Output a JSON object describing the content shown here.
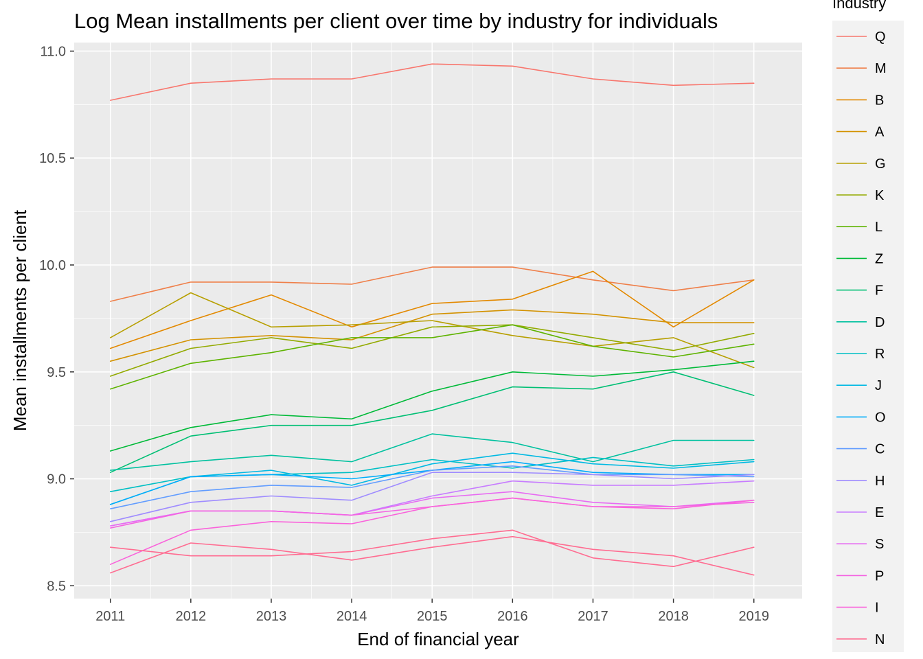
{
  "chart_data": {
    "type": "line",
    "title": "Log Mean installments per client over time by industry for individuals",
    "xlabel": "End of financial year",
    "ylabel": "Mean installments per client",
    "x": [
      2011,
      2012,
      2013,
      2014,
      2015,
      2016,
      2017,
      2018,
      2019
    ],
    "x_tick_labels": [
      "2011",
      "2012",
      "2013",
      "2014",
      "2015",
      "2016",
      "2017",
      "2018",
      "2019"
    ],
    "xlim": [
      2010.55,
      2019.6
    ],
    "ylim": [
      8.44,
      11.04
    ],
    "y_ticks": [
      8.5,
      9.0,
      9.5,
      10.0,
      10.5,
      11.0
    ],
    "y_tick_labels": [
      "8.5",
      "9.0",
      "9.5",
      "10.0",
      "10.5",
      "11.0"
    ],
    "grid": true,
    "legend": {
      "title": "Industry",
      "position": "right"
    },
    "series": [
      {
        "name": "Q",
        "color": "#F8766D",
        "values": [
          10.77,
          10.85,
          10.87,
          10.87,
          10.94,
          10.93,
          10.87,
          10.84,
          10.85
        ]
      },
      {
        "name": "M",
        "color": "#EF7F49",
        "values": [
          9.83,
          9.92,
          9.92,
          9.91,
          9.99,
          9.99,
          9.93,
          9.88,
          9.93
        ]
      },
      {
        "name": "B",
        "color": "#E38900",
        "values": [
          9.61,
          9.74,
          9.86,
          9.71,
          9.82,
          9.84,
          9.97,
          9.71,
          9.93
        ]
      },
      {
        "name": "A",
        "color": "#D39200",
        "values": [
          9.55,
          9.65,
          9.67,
          9.65,
          9.77,
          9.79,
          9.77,
          9.73,
          9.73
        ]
      },
      {
        "name": "G",
        "color": "#B79F00",
        "values": [
          9.66,
          9.87,
          9.71,
          9.72,
          9.74,
          9.67,
          9.62,
          9.66,
          9.52
        ]
      },
      {
        "name": "K",
        "color": "#93AA00",
        "values": [
          9.48,
          9.61,
          9.66,
          9.61,
          9.71,
          9.72,
          9.66,
          9.6,
          9.68
        ]
      },
      {
        "name": "L",
        "color": "#5EB300",
        "values": [
          9.42,
          9.54,
          9.59,
          9.66,
          9.66,
          9.72,
          9.62,
          9.57,
          9.63
        ]
      },
      {
        "name": "Z",
        "color": "#00BA38",
        "values": [
          9.13,
          9.24,
          9.3,
          9.28,
          9.41,
          9.5,
          9.48,
          9.51,
          9.55
        ]
      },
      {
        "name": "F",
        "color": "#00BF74",
        "values": [
          9.03,
          9.2,
          9.25,
          9.25,
          9.32,
          9.43,
          9.42,
          9.5,
          9.39
        ]
      },
      {
        "name": "D",
        "color": "#00C19F",
        "values": [
          9.04,
          9.08,
          9.11,
          9.08,
          9.21,
          9.17,
          9.08,
          9.18,
          9.18
        ]
      },
      {
        "name": "R",
        "color": "#00BFC4",
        "values": [
          8.94,
          9.01,
          9.02,
          9.03,
          9.09,
          9.05,
          9.1,
          9.06,
          9.09
        ]
      },
      {
        "name": "J",
        "color": "#00B9E3",
        "values": [
          8.88,
          9.01,
          9.04,
          8.97,
          9.07,
          9.12,
          9.07,
          9.05,
          9.08
        ]
      },
      {
        "name": "O",
        "color": "#00ADFA",
        "values": [
          8.88,
          9.01,
          9.02,
          9.0,
          9.04,
          9.08,
          9.03,
          9.02,
          9.02
        ]
      },
      {
        "name": "C",
        "color": "#619CFF",
        "values": [
          8.86,
          8.94,
          8.97,
          8.96,
          9.04,
          9.06,
          9.02,
          9.02,
          9.01
        ]
      },
      {
        "name": "H",
        "color": "#9F8CFF",
        "values": [
          8.8,
          8.89,
          8.92,
          8.9,
          9.03,
          9.03,
          9.02,
          9.0,
          9.02
        ]
      },
      {
        "name": "E",
        "color": "#C77CFF",
        "values": [
          8.78,
          8.85,
          8.85,
          8.83,
          8.92,
          8.99,
          8.97,
          8.97,
          8.99
        ]
      },
      {
        "name": "S",
        "color": "#E76BF3",
        "values": [
          8.78,
          8.85,
          8.85,
          8.83,
          8.91,
          8.94,
          8.89,
          8.87,
          8.9
        ]
      },
      {
        "name": "P",
        "color": "#F464E2",
        "values": [
          8.77,
          8.85,
          8.85,
          8.83,
          8.87,
          8.91,
          8.87,
          8.87,
          8.89
        ]
      },
      {
        "name": "I",
        "color": "#FA62DB",
        "values": [
          8.6,
          8.76,
          8.8,
          8.79,
          8.87,
          8.91,
          8.87,
          8.86,
          8.9
        ]
      },
      {
        "name": "N",
        "color": "#FF6C91",
        "values": [
          8.56,
          8.7,
          8.67,
          8.62,
          8.68,
          8.73,
          8.67,
          8.64,
          8.55
        ]
      },
      {
        "name": "",
        "color": "#FF6C91",
        "values": [
          8.68,
          8.64,
          8.64,
          8.66,
          8.72,
          8.76,
          8.63,
          8.59,
          8.68
        ]
      }
    ]
  }
}
